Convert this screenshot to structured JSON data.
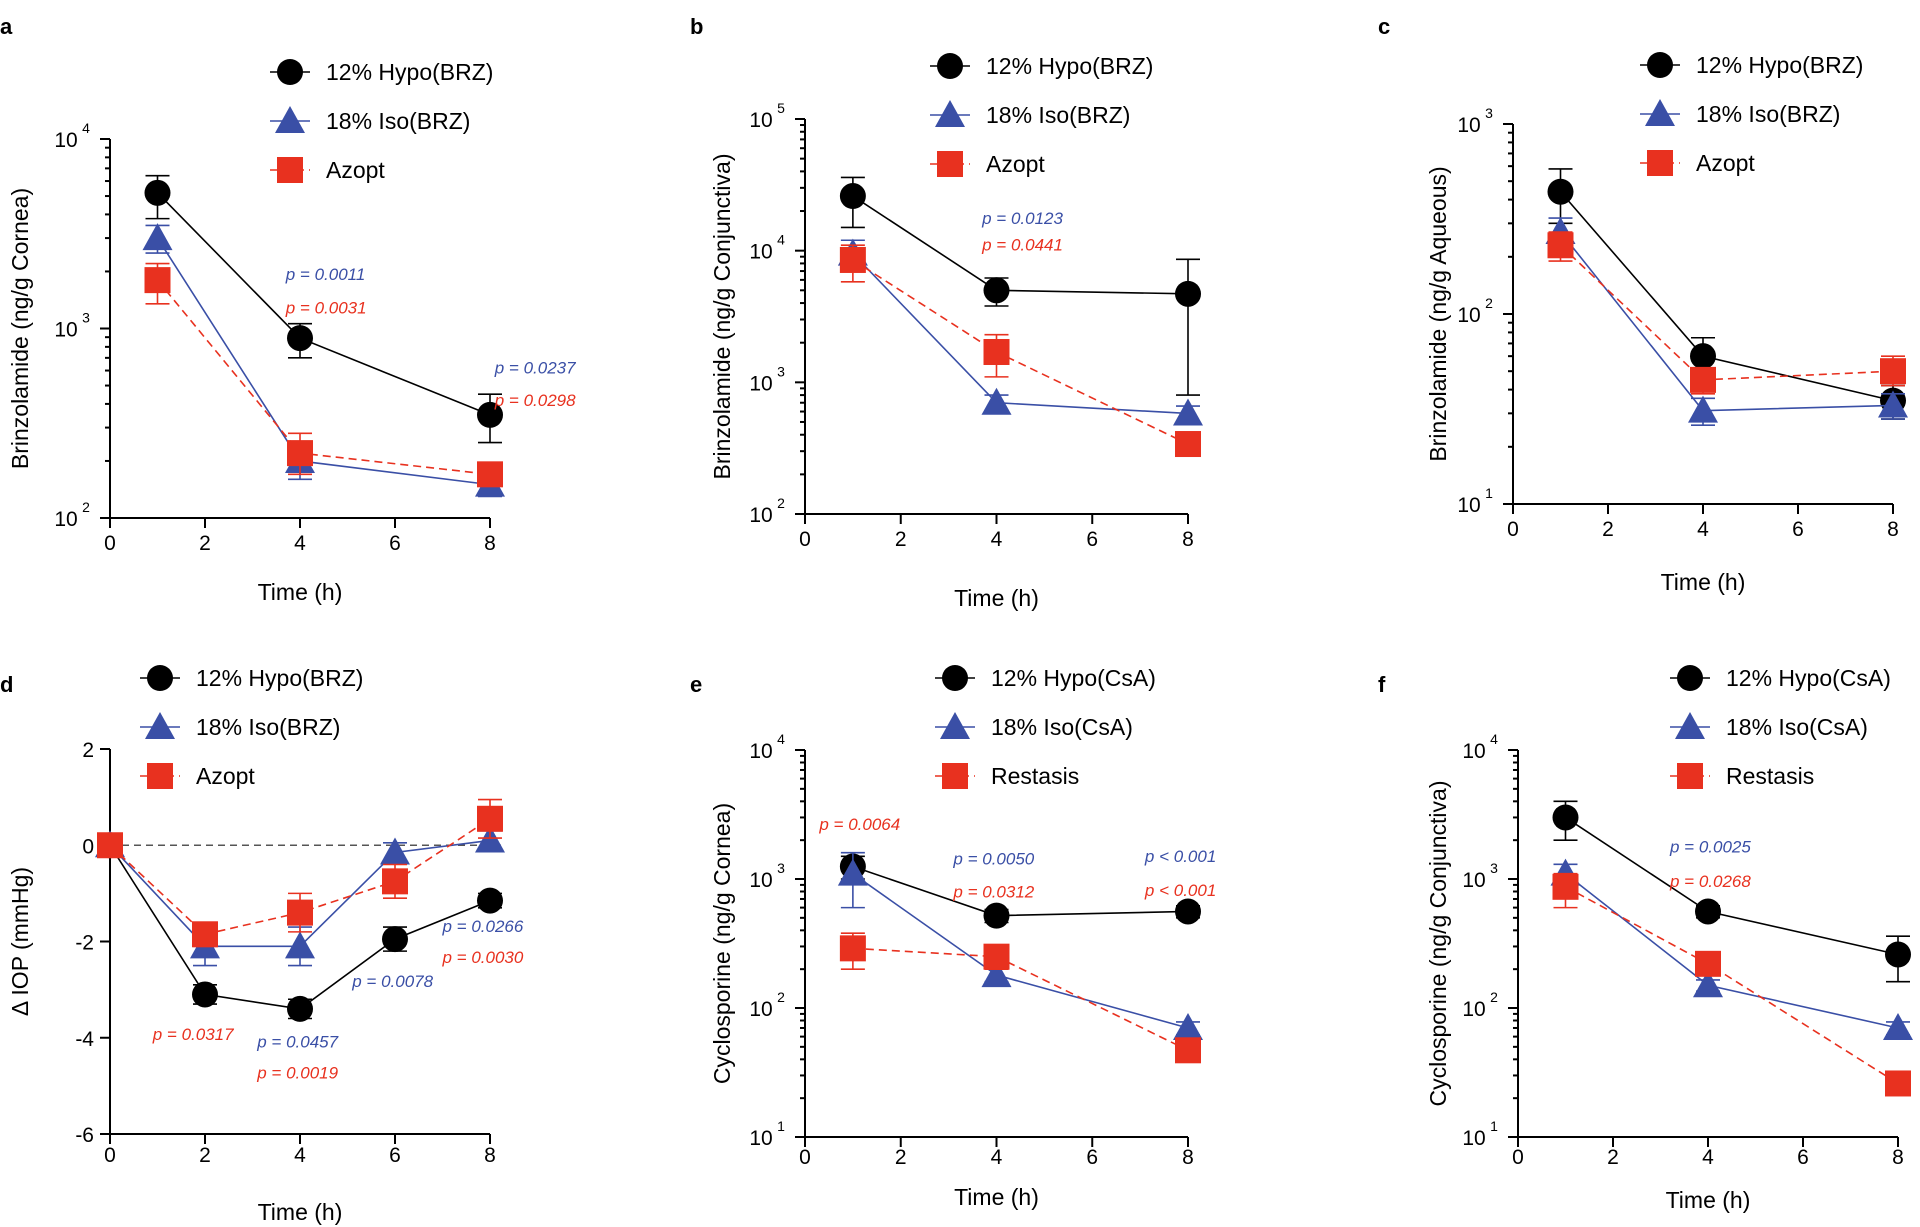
{
  "colors": {
    "hypo": "#000000",
    "iso": "#3a4fa6",
    "ref": "#e8311f"
  },
  "chart_data": [
    {
      "panel": "a",
      "type": "line",
      "yscale": "log",
      "ylabel": "Brinzolamide (ng/g Cornea)",
      "xlabel": "Time (h)",
      "xlim": [
        0,
        8
      ],
      "xticks": [
        "0",
        "2",
        "4",
        "6",
        "8"
      ],
      "ylim": [
        100,
        10000
      ],
      "yticks": [
        {
          "base": "10",
          "exp": "2",
          "value": 100
        },
        {
          "base": "10",
          "exp": "3",
          "value": 1000
        },
        {
          "base": "10",
          "exp": "4",
          "value": 10000
        }
      ],
      "series": [
        {
          "name": "12% Hypo(BRZ)",
          "key": "hypo",
          "marker": "circle",
          "dash": false,
          "x": [
            1,
            4,
            8
          ],
          "y": [
            5200,
            890,
            350
          ],
          "err": [
            [
              3800,
              6400
            ],
            [
              700,
              1060
            ],
            [
              250,
              450
            ]
          ]
        },
        {
          "name": "18% Iso(BRZ)",
          "key": "iso",
          "marker": "triangle",
          "dash": false,
          "x": [
            1,
            4,
            8
          ],
          "y": [
            3000,
            200,
            150
          ],
          "err": [
            [
              2500,
              3500
            ],
            [
              160,
              240
            ],
            [
              130,
              170
            ]
          ]
        },
        {
          "name": "Azopt",
          "key": "ref",
          "marker": "square",
          "dash": true,
          "x": [
            1,
            4,
            8
          ],
          "y": [
            1800,
            220,
            170
          ],
          "err": [
            [
              1350,
              2200
            ],
            [
              170,
              280
            ],
            [
              150,
              190
            ]
          ]
        }
      ],
      "annotations": [
        {
          "text": "p = 0.0011",
          "color": "iso",
          "x": 3.7,
          "y": 1800
        },
        {
          "text": "p = 0.0031",
          "color": "ref",
          "x": 3.7,
          "y": 1200
        },
        {
          "text": "p = 0.0237",
          "color": "iso",
          "x": 8.1,
          "y": 580
        },
        {
          "text": "p = 0.0298",
          "color": "ref",
          "x": 8.1,
          "y": 390
        }
      ]
    },
    {
      "panel": "b",
      "type": "line",
      "yscale": "log",
      "ylabel": "Brinzolamide (ng/g Conjunctiva)",
      "xlabel": "Time (h)",
      "xlim": [
        0,
        8
      ],
      "xticks": [
        "0",
        "2",
        "4",
        "6",
        "8"
      ],
      "ylim": [
        100,
        100000
      ],
      "yticks": [
        {
          "base": "10",
          "exp": "2",
          "value": 100
        },
        {
          "base": "10",
          "exp": "3",
          "value": 1000
        },
        {
          "base": "10",
          "exp": "4",
          "value": 10000
        },
        {
          "base": "10",
          "exp": "5",
          "value": 100000
        }
      ],
      "series": [
        {
          "name": "12% Hypo(BRZ)",
          "key": "hypo",
          "marker": "circle",
          "dash": false,
          "x": [
            1,
            4,
            8
          ],
          "y": [
            26000,
            5000,
            4700
          ],
          "err": [
            [
              15000,
              36000
            ],
            [
              3800,
              6200
            ],
            [
              800,
              8600
            ]
          ]
        },
        {
          "name": "18% Iso(BRZ)",
          "key": "iso",
          "marker": "triangle",
          "dash": false,
          "x": [
            1,
            4,
            8
          ],
          "y": [
            9500,
            700,
            580
          ],
          "err": [
            [
              7000,
              12000
            ],
            [
              600,
              800
            ],
            [
              500,
              660
            ]
          ]
        },
        {
          "name": "Azopt",
          "key": "ref",
          "marker": "square",
          "dash": true,
          "x": [
            1,
            4,
            8
          ],
          "y": [
            8500,
            1700,
            340
          ],
          "err": [
            [
              5800,
              11000
            ],
            [
              1100,
              2300
            ],
            [
              300,
              380
            ]
          ]
        }
      ],
      "annotations": [
        {
          "text": "p = 0.0123",
          "color": "iso",
          "x": 3.7,
          "y": 16000
        },
        {
          "text": "p = 0.0441",
          "color": "ref",
          "x": 3.7,
          "y": 10000
        }
      ]
    },
    {
      "panel": "c",
      "type": "line",
      "yscale": "log",
      "ylabel": "Brinzolamide (ng/g Aqueous)",
      "xlabel": "Time (h)",
      "xlim": [
        0,
        8
      ],
      "xticks": [
        "0",
        "2",
        "4",
        "6",
        "8"
      ],
      "ylim": [
        10,
        1000
      ],
      "yticks": [
        {
          "base": "10",
          "exp": "1",
          "value": 10
        },
        {
          "base": "10",
          "exp": "2",
          "value": 100
        },
        {
          "base": "10",
          "exp": "3",
          "value": 1000
        }
      ],
      "series": [
        {
          "name": "12% Hypo(BRZ)",
          "key": "hypo",
          "marker": "circle",
          "dash": false,
          "x": [
            1,
            4,
            8
          ],
          "y": [
            440,
            60,
            35
          ],
          "err": [
            [
              300,
              580
            ],
            [
              45,
              75
            ],
            [
              28,
              42
            ]
          ]
        },
        {
          "name": "18% Iso(BRZ)",
          "key": "iso",
          "marker": "triangle",
          "dash": false,
          "x": [
            1,
            4,
            8
          ],
          "y": [
            270,
            31,
            33
          ],
          "err": [
            [
              220,
              320
            ],
            [
              26,
              36
            ],
            [
              28,
              38
            ]
          ]
        },
        {
          "name": "Azopt",
          "key": "ref",
          "marker": "square",
          "dash": true,
          "x": [
            1,
            4,
            8
          ],
          "y": [
            230,
            45,
            50
          ],
          "err": [
            [
              190,
              270
            ],
            [
              38,
              52
            ],
            [
              42,
              60
            ]
          ]
        }
      ],
      "annotations": []
    },
    {
      "panel": "d",
      "type": "line",
      "yscale": "linear",
      "ylabel": "Δ IOP  (mmHg)",
      "xlabel": "Time (h)",
      "xlim": [
        0,
        8
      ],
      "xticks": [
        "0",
        "2",
        "4",
        "6",
        "8"
      ],
      "ylim": [
        -6,
        2
      ],
      "yticks": [
        {
          "label": "-6",
          "value": -6
        },
        {
          "label": "-4",
          "value": -4
        },
        {
          "label": "-2",
          "value": -2
        },
        {
          "label": "0",
          "value": 0
        },
        {
          "label": "2",
          "value": 2
        }
      ],
      "baseline": 0,
      "series": [
        {
          "name": "12% Hypo(BRZ)",
          "key": "hypo",
          "marker": "circle",
          "dash": false,
          "x": [
            0,
            2,
            4,
            6,
            8
          ],
          "y": [
            0,
            -3.1,
            -3.4,
            -1.95,
            -1.15
          ],
          "err": [
            [
              0,
              0
            ],
            [
              -3.3,
              -2.9
            ],
            [
              -3.6,
              -3.2
            ],
            [
              -2.2,
              -1.7
            ],
            [
              -1.3,
              -1.0
            ]
          ]
        },
        {
          "name": "18% Iso(BRZ)",
          "key": "iso",
          "marker": "triangle",
          "dash": false,
          "x": [
            0,
            2,
            4,
            6,
            8
          ],
          "y": [
            0,
            -2.1,
            -2.1,
            -0.15,
            0.1
          ],
          "err": [
            [
              0,
              0
            ],
            [
              -2.5,
              -1.7
            ],
            [
              -2.5,
              -1.7
            ],
            [
              -0.35,
              0.05
            ],
            [
              -0.1,
              0.3
            ]
          ]
        },
        {
          "name": "Azopt",
          "key": "ref",
          "marker": "square",
          "dash": true,
          "x": [
            0,
            2,
            4,
            6,
            8
          ],
          "y": [
            0,
            -1.85,
            -1.4,
            -0.75,
            0.55
          ],
          "err": [
            [
              0,
              0
            ],
            [
              -2.1,
              -1.6
            ],
            [
              -1.8,
              -1.0
            ],
            [
              -1.1,
              -0.4
            ],
            [
              0.15,
              0.95
            ]
          ]
        }
      ],
      "annotations": [
        {
          "text": "p = 0.0317",
          "color": "ref",
          "x": 0.9,
          "y": -4.05
        },
        {
          "text": "p = 0.0457",
          "color": "iso",
          "x": 3.1,
          "y": -4.2
        },
        {
          "text": "p = 0.0019",
          "color": "ref",
          "x": 3.1,
          "y": -4.85
        },
        {
          "text": "p = 0.0078",
          "color": "iso",
          "x": 5.1,
          "y": -2.95
        },
        {
          "text": "p = 0.0266",
          "color": "iso",
          "x": 7.0,
          "y": -1.8
        },
        {
          "text": "p = 0.0030",
          "color": "ref",
          "x": 7.0,
          "y": -2.45
        }
      ]
    },
    {
      "panel": "e",
      "type": "line",
      "yscale": "log",
      "ylabel": "Cyclosporine (ng/g Cornea)",
      "xlabel": "Time (h)",
      "xlim": [
        0,
        8
      ],
      "xticks": [
        "0",
        "2",
        "4",
        "6",
        "8"
      ],
      "ylim": [
        10,
        10000
      ],
      "yticks": [
        {
          "base": "10",
          "exp": "1",
          "value": 10
        },
        {
          "base": "10",
          "exp": "2",
          "value": 100
        },
        {
          "base": "10",
          "exp": "3",
          "value": 1000
        },
        {
          "base": "10",
          "exp": "4",
          "value": 10000
        }
      ],
      "series": [
        {
          "name": "12% Hypo(CsA)",
          "key": "hypo",
          "marker": "circle",
          "dash": false,
          "x": [
            1,
            4,
            8
          ],
          "y": [
            1250,
            520,
            560
          ],
          "err": [
            [
              1000,
              1500
            ],
            [
              460,
              580
            ],
            [
              500,
              620
            ]
          ]
        },
        {
          "name": "18% Iso(CsA)",
          "key": "iso",
          "marker": "triangle",
          "dash": false,
          "x": [
            1,
            4,
            8
          ],
          "y": [
            1100,
            180,
            70
          ],
          "err": [
            [
              600,
              1600
            ],
            [
              160,
              200
            ],
            [
              62,
              78
            ]
          ]
        },
        {
          "name": "Restasis",
          "key": "ref",
          "marker": "square",
          "dash": true,
          "x": [
            1,
            4,
            8
          ],
          "y": [
            290,
            250,
            47
          ],
          "err": [
            [
              200,
              380
            ],
            [
              200,
              300
            ],
            [
              42,
              52
            ]
          ]
        }
      ],
      "annotations": [
        {
          "text": "p = 0.0064",
          "color": "ref",
          "x": 0.3,
          "y": 2400
        },
        {
          "text": "p = 0.0050",
          "color": "iso",
          "x": 3.1,
          "y": 1300
        },
        {
          "text": "p = 0.0312",
          "color": "ref",
          "x": 3.1,
          "y": 720
        },
        {
          "text": "p < 0.001",
          "color": "iso",
          "x": 7.1,
          "y": 1350
        },
        {
          "text": "p < 0.001",
          "color": "ref",
          "x": 7.1,
          "y": 740
        }
      ]
    },
    {
      "panel": "f",
      "type": "line",
      "yscale": "log",
      "ylabel": "Cyclosporine (ng/g Conjunctiva)",
      "xlabel": "Time (h)",
      "xlim": [
        0,
        8
      ],
      "xticks": [
        "0",
        "2",
        "4",
        "6",
        "8"
      ],
      "ylim": [
        10,
        10000
      ],
      "yticks": [
        {
          "base": "10",
          "exp": "1",
          "value": 10
        },
        {
          "base": "10",
          "exp": "2",
          "value": 100
        },
        {
          "base": "10",
          "exp": "3",
          "value": 1000
        },
        {
          "base": "10",
          "exp": "4",
          "value": 10000
        }
      ],
      "series": [
        {
          "name": "12% Hypo(CsA)",
          "key": "hypo",
          "marker": "circle",
          "dash": false,
          "x": [
            1,
            4,
            8
          ],
          "y": [
            3000,
            560,
            260
          ],
          "err": [
            [
              2000,
              4000
            ],
            [
              500,
              620
            ],
            [
              160,
              360
            ]
          ]
        },
        {
          "name": "18% Iso(CsA)",
          "key": "iso",
          "marker": "triangle",
          "dash": false,
          "x": [
            1,
            4,
            8
          ],
          "y": [
            1100,
            150,
            70
          ],
          "err": [
            [
              900,
              1300
            ],
            [
              135,
              165
            ],
            [
              62,
              78
            ]
          ]
        },
        {
          "name": "Restasis",
          "key": "ref",
          "marker": "square",
          "dash": true,
          "x": [
            1,
            4,
            8
          ],
          "y": [
            870,
            220,
            26
          ],
          "err": [
            [
              600,
              1100
            ],
            [
              180,
              260
            ],
            [
              23,
              29
            ]
          ]
        }
      ],
      "annotations": [
        {
          "text": "p = 0.0025",
          "color": "iso",
          "x": 3.2,
          "y": 1600
        },
        {
          "text": "p = 0.0268",
          "color": "ref",
          "x": 3.2,
          "y": 870
        }
      ]
    }
  ]
}
